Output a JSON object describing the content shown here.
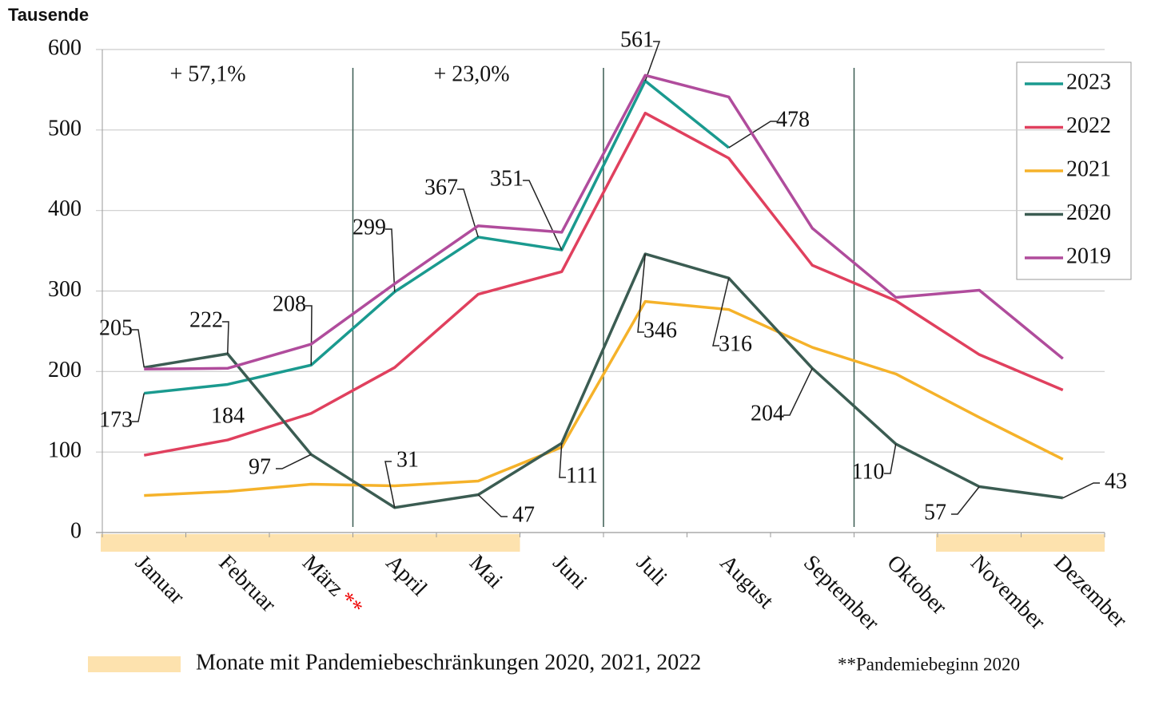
{
  "chart_data": {
    "type": "line",
    "y_axis_label": "Tausende",
    "categories": [
      "Januar",
      "Februar",
      "März",
      "April",
      "Mai",
      "Juni",
      "Juli",
      "August",
      "September",
      "Oktober",
      "November",
      "Dezember"
    ],
    "category_markers": [
      null,
      null,
      "**",
      null,
      null,
      null,
      null,
      null,
      null,
      null,
      null,
      null
    ],
    "ylim": [
      0,
      600
    ],
    "yticks": [
      0,
      100,
      200,
      300,
      400,
      500,
      600
    ],
    "grid": true,
    "legend": "top-right",
    "series": [
      {
        "name": "2023",
        "color": "#1a9a8f",
        "show_labels": true,
        "values": [
          173,
          184,
          208,
          299,
          367,
          351,
          561,
          478,
          null,
          null,
          null,
          null
        ]
      },
      {
        "name": "2022",
        "color": "#e0405e",
        "values": [
          96,
          115,
          148,
          205,
          296,
          324,
          521,
          465,
          332,
          288,
          221,
          177
        ]
      },
      {
        "name": "2021",
        "color": "#f5b22a",
        "values": [
          46,
          51,
          60,
          58,
          64,
          106,
          287,
          277,
          230,
          197,
          143,
          91
        ]
      },
      {
        "name": "2020",
        "color": "#3b5c52",
        "show_labels": true,
        "values": [
          205,
          222,
          97,
          31,
          47,
          111,
          346,
          316,
          204,
          110,
          57,
          43
        ]
      },
      {
        "name": "2019",
        "color": "#b04c9c",
        "values": [
          203,
          204,
          234,
          309,
          381,
          373,
          568,
          541,
          378,
          292,
          301,
          216
        ]
      }
    ],
    "annotations": [
      "+ 57,1%",
      "+ 23,0%"
    ],
    "shaded_spans": [
      {
        "from": "Januar",
        "to": "Mai"
      },
      {
        "from": "November",
        "to": "Dezember"
      }
    ],
    "shade_color": "#fde2ae",
    "shade_legend": "Monate mit Pandemiebeschränkungen 2020, 2021, 2022",
    "footnote": "**Pandemiebeginn 2020"
  }
}
